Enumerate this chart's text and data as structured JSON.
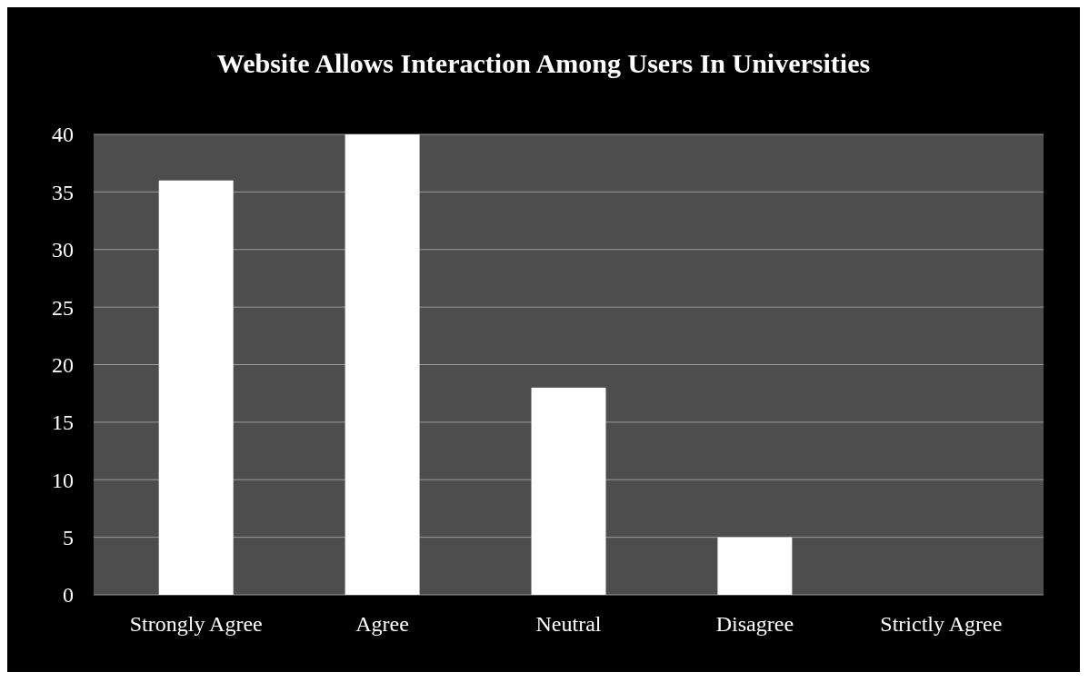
{
  "chart_data": {
    "type": "bar",
    "title": "Website Allows Interaction Among Users In Universities",
    "categories": [
      "Strongly Agree",
      "Agree",
      "Neutral",
      "Disagree",
      "Strictly Agree"
    ],
    "values": [
      36,
      40,
      18,
      5,
      0
    ],
    "color": "#ffffff",
    "ylim": [
      0,
      40
    ],
    "yticks": [
      0,
      5,
      10,
      15,
      20,
      25,
      30,
      35,
      40
    ],
    "grid": "y"
  }
}
